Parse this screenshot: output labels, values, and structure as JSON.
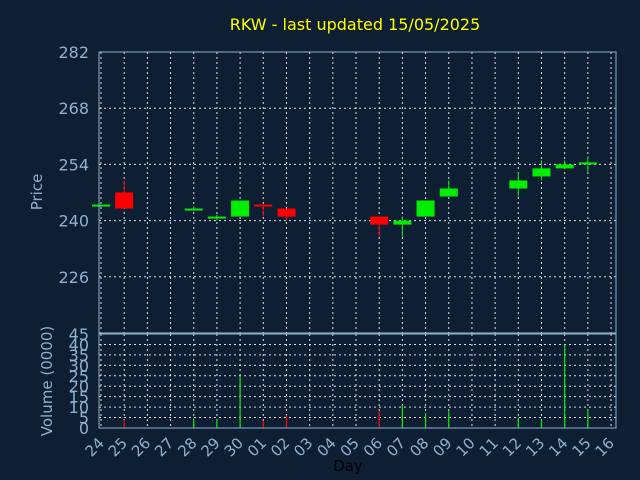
{
  "chart_data": {
    "type": "candlestick",
    "title": "RKW - last updated 15/05/2025",
    "xlabel": "Day",
    "price_panel": {
      "ylabel": "Price",
      "ylim": [
        212,
        282
      ],
      "yticks": [
        "282",
        "268",
        "254",
        "240",
        "226"
      ],
      "grid": true
    },
    "volume_panel": {
      "ylabel": "Volume (0000)",
      "ylim": [
        0,
        45
      ],
      "yticks": [
        "45",
        "40",
        "35",
        "30",
        "25",
        "20",
        "15",
        "10",
        "5",
        "0"
      ],
      "grid": true
    },
    "x_ticks": [
      "24",
      "25",
      "26",
      "27",
      "28",
      "29",
      "30",
      "01",
      "02",
      "03",
      "04",
      "05",
      "06",
      "07",
      "08",
      "09",
      "10",
      "11",
      "12",
      "13",
      "14",
      "15",
      "16"
    ],
    "up_color": "#00ee00",
    "down_color": "#ff0000",
    "candles": [
      {
        "day": "24",
        "open": 244,
        "high": 244,
        "low": 244,
        "close": 244,
        "volume": 0
      },
      {
        "day": "25",
        "open": 247,
        "high": 250,
        "low": 243,
        "close": 243,
        "volume": 4
      },
      {
        "day": "28",
        "open": 243,
        "high": 243.5,
        "low": 242.5,
        "close": 243,
        "volume": 4.5
      },
      {
        "day": "29",
        "open": 241,
        "high": 241.5,
        "low": 240,
        "close": 241,
        "volume": 4
      },
      {
        "day": "30",
        "open": 241,
        "high": 245,
        "low": 241,
        "close": 245,
        "volume": 25
      },
      {
        "day": "01",
        "open": 244,
        "high": 244,
        "low": 241,
        "close": 243.5,
        "volume": 3.5
      },
      {
        "day": "02",
        "open": 243,
        "high": 243,
        "low": 240,
        "close": 241,
        "volume": 6
      },
      {
        "day": "06",
        "open": 241,
        "high": 241,
        "low": 236,
        "close": 239,
        "volume": 8
      },
      {
        "day": "07",
        "open": 239,
        "high": 241,
        "low": 236,
        "close": 240,
        "volume": 11
      },
      {
        "day": "08",
        "open": 241,
        "high": 245,
        "low": 241,
        "close": 245,
        "volume": 7
      },
      {
        "day": "09",
        "open": 246,
        "high": 250,
        "low": 246,
        "close": 248,
        "volume": 8
      },
      {
        "day": "12",
        "open": 248,
        "high": 252,
        "low": 246,
        "close": 250,
        "volume": 5
      },
      {
        "day": "13",
        "open": 251,
        "high": 255,
        "low": 250,
        "close": 253,
        "volume": 4
      },
      {
        "day": "14",
        "open": 253,
        "high": 255,
        "low": 253,
        "close": 254,
        "volume": 40
      },
      {
        "day": "15",
        "open": 254,
        "high": 256,
        "low": 252,
        "close": 254.5,
        "volume": 9
      }
    ]
  }
}
